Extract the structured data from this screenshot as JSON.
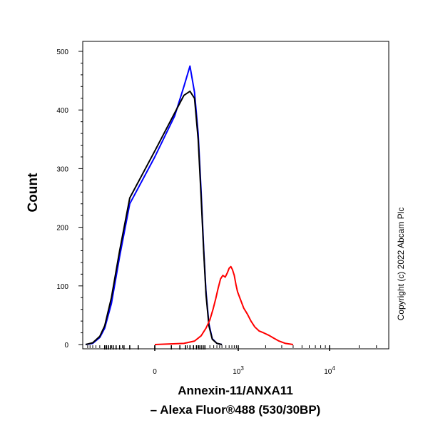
{
  "chart_data": {
    "type": "line",
    "ylabel": "Count",
    "xlabel_line1": "Annexin-11/ANXA11",
    "xlabel_line2": "– Alexa Fluor®488 (530/30BP)",
    "copyright": "Copyright (c) 2022 Abcam Plc",
    "ylim": [
      0,
      500
    ],
    "yticks": [
      0,
      100,
      200,
      300,
      400,
      500
    ],
    "xscale": "biexponential",
    "xtick_labels": [
      {
        "base": "0",
        "exp": "",
        "value": 0
      },
      {
        "base": "10",
        "exp": "3",
        "value": 1000
      },
      {
        "base": "10",
        "exp": "4",
        "value": 10000
      }
    ],
    "series": [
      {
        "color": "#0000ff",
        "description": "isotype control",
        "points": [
          [
            -450,
            0
          ],
          [
            -300,
            2
          ],
          [
            -200,
            12
          ],
          [
            -150,
            28
          ],
          [
            -100,
            70
          ],
          [
            -60,
            150
          ],
          [
            -30,
            240
          ],
          [
            0,
            320
          ],
          [
            20,
            390
          ],
          [
            40,
            440
          ],
          [
            60,
            475
          ],
          [
            80,
            430
          ],
          [
            100,
            360
          ],
          [
            120,
            260
          ],
          [
            140,
            160
          ],
          [
            160,
            90
          ],
          [
            190,
            35
          ],
          [
            230,
            10
          ],
          [
            300,
            2
          ],
          [
            400,
            0
          ]
        ]
      },
      {
        "color": "#000000",
        "description": "unstained control",
        "points": [
          [
            -450,
            0
          ],
          [
            -300,
            3
          ],
          [
            -200,
            14
          ],
          [
            -150,
            32
          ],
          [
            -100,
            80
          ],
          [
            -60,
            160
          ],
          [
            -30,
            250
          ],
          [
            0,
            330
          ],
          [
            20,
            395
          ],
          [
            40,
            425
          ],
          [
            60,
            432
          ],
          [
            80,
            420
          ],
          [
            100,
            350
          ],
          [
            120,
            250
          ],
          [
            140,
            155
          ],
          [
            160,
            85
          ],
          [
            190,
            32
          ],
          [
            230,
            9
          ],
          [
            300,
            2
          ],
          [
            400,
            0
          ]
        ]
      },
      {
        "color": "#ff0000",
        "description": "Annexin-11 stained",
        "points": [
          [
            0,
            0
          ],
          [
            40,
            2
          ],
          [
            80,
            6
          ],
          [
            120,
            15
          ],
          [
            160,
            28
          ],
          [
            200,
            42
          ],
          [
            240,
            60
          ],
          [
            280,
            78
          ],
          [
            320,
            95
          ],
          [
            370,
            112
          ],
          [
            420,
            118
          ],
          [
            480,
            115
          ],
          [
            540,
            122
          ],
          [
            600,
            130
          ],
          [
            660,
            133
          ],
          [
            720,
            128
          ],
          [
            800,
            118
          ],
          [
            880,
            102
          ],
          [
            960,
            90
          ],
          [
            1050,
            78
          ],
          [
            1150,
            62
          ],
          [
            1260,
            52
          ],
          [
            1380,
            40
          ],
          [
            1520,
            30
          ],
          [
            1700,
            23
          ],
          [
            1900,
            20
          ],
          [
            2150,
            16
          ],
          [
            2450,
            11
          ],
          [
            2800,
            6
          ],
          [
            3300,
            2
          ],
          [
            4000,
            0
          ]
        ]
      }
    ]
  }
}
